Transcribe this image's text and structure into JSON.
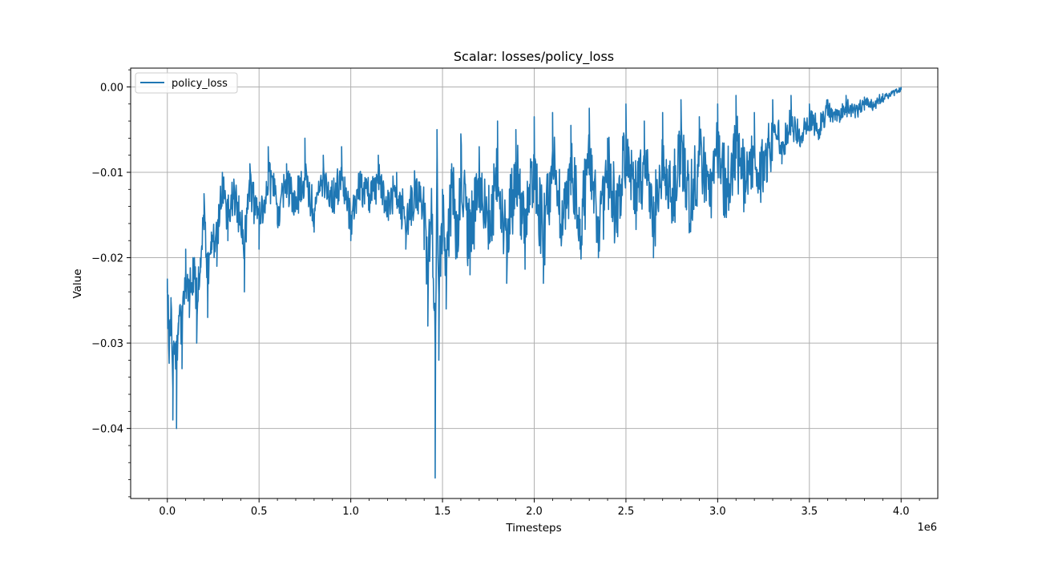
{
  "chart_data": {
    "type": "line",
    "title": "Scalar: losses/policy_loss",
    "xlabel": "Timesteps",
    "ylabel": "Value",
    "x_offset_label": "1e6",
    "xlim": [
      -0.2,
      4.2
    ],
    "ylim": [
      -0.0482,
      0.0022
    ],
    "x_ticks": [
      0.0,
      0.5,
      1.0,
      1.5,
      2.0,
      2.5,
      3.0,
      3.5,
      4.0
    ],
    "x_tick_labels": [
      "0.0",
      "0.5",
      "1.0",
      "1.5",
      "2.0",
      "2.5",
      "3.0",
      "3.5",
      "4.0"
    ],
    "y_ticks": [
      0.0,
      -0.01,
      -0.02,
      -0.03,
      -0.04
    ],
    "y_tick_labels": [
      "0.00",
      "−0.01",
      "−0.02",
      "−0.03",
      "−0.04"
    ],
    "grid": true,
    "legend_position": "top-left",
    "series": [
      {
        "name": "policy_loss",
        "color": "#1f77b4",
        "x": [
          0.0,
          0.01,
          0.02,
          0.03,
          0.04,
          0.05,
          0.06,
          0.08,
          0.1,
          0.12,
          0.14,
          0.16,
          0.18,
          0.2,
          0.22,
          0.24,
          0.27,
          0.3,
          0.33,
          0.36,
          0.39,
          0.42,
          0.45,
          0.48,
          0.5,
          0.55,
          0.6,
          0.65,
          0.7,
          0.75,
          0.8,
          0.85,
          0.9,
          0.95,
          1.0,
          1.05,
          1.1,
          1.15,
          1.2,
          1.25,
          1.3,
          1.35,
          1.4,
          1.42,
          1.44,
          1.46,
          1.47,
          1.48,
          1.5,
          1.52,
          1.55,
          1.58,
          1.6,
          1.65,
          1.7,
          1.75,
          1.8,
          1.85,
          1.9,
          1.95,
          2.0,
          2.05,
          2.1,
          2.15,
          2.2,
          2.25,
          2.3,
          2.35,
          2.4,
          2.45,
          2.5,
          2.55,
          2.6,
          2.65,
          2.7,
          2.75,
          2.8,
          2.85,
          2.9,
          2.95,
          3.0,
          3.05,
          3.1,
          3.15,
          3.2,
          3.25,
          3.3,
          3.35,
          3.4,
          3.45,
          3.5,
          3.55,
          3.6,
          3.65,
          3.7,
          3.75,
          3.8,
          3.85,
          3.9,
          3.95,
          4.0
        ],
        "y": [
          -0.0225,
          -0.032,
          -0.025,
          -0.039,
          -0.03,
          -0.04,
          -0.029,
          -0.033,
          -0.019,
          -0.027,
          -0.021,
          -0.03,
          -0.02,
          -0.0125,
          -0.027,
          -0.017,
          -0.021,
          -0.01,
          -0.018,
          -0.013,
          -0.016,
          -0.024,
          -0.009,
          -0.015,
          -0.019,
          -0.007,
          -0.016,
          -0.009,
          -0.0135,
          -0.006,
          -0.017,
          -0.008,
          -0.014,
          -0.007,
          -0.018,
          -0.01,
          -0.0125,
          -0.008,
          -0.015,
          -0.01,
          -0.019,
          -0.011,
          -0.0145,
          -0.028,
          -0.012,
          -0.0458,
          -0.005,
          -0.032,
          -0.012,
          -0.026,
          -0.009,
          -0.02,
          -0.0055,
          -0.022,
          -0.007,
          -0.019,
          -0.004,
          -0.023,
          -0.005,
          -0.02,
          -0.0035,
          -0.023,
          -0.003,
          -0.017,
          -0.0045,
          -0.019,
          -0.0025,
          -0.02,
          -0.006,
          -0.017,
          -0.002,
          -0.014,
          -0.004,
          -0.02,
          -0.003,
          -0.015,
          -0.0015,
          -0.016,
          -0.0035,
          -0.012,
          -0.002,
          -0.013,
          -0.001,
          -0.011,
          -0.003,
          -0.0085,
          -0.0015,
          -0.009,
          -0.001,
          -0.007,
          -0.002,
          -0.005,
          -0.0015,
          -0.004,
          -0.001,
          -0.003,
          -0.0012,
          -0.002,
          -0.0008,
          -0.0005,
          0.0
        ]
      }
    ]
  }
}
